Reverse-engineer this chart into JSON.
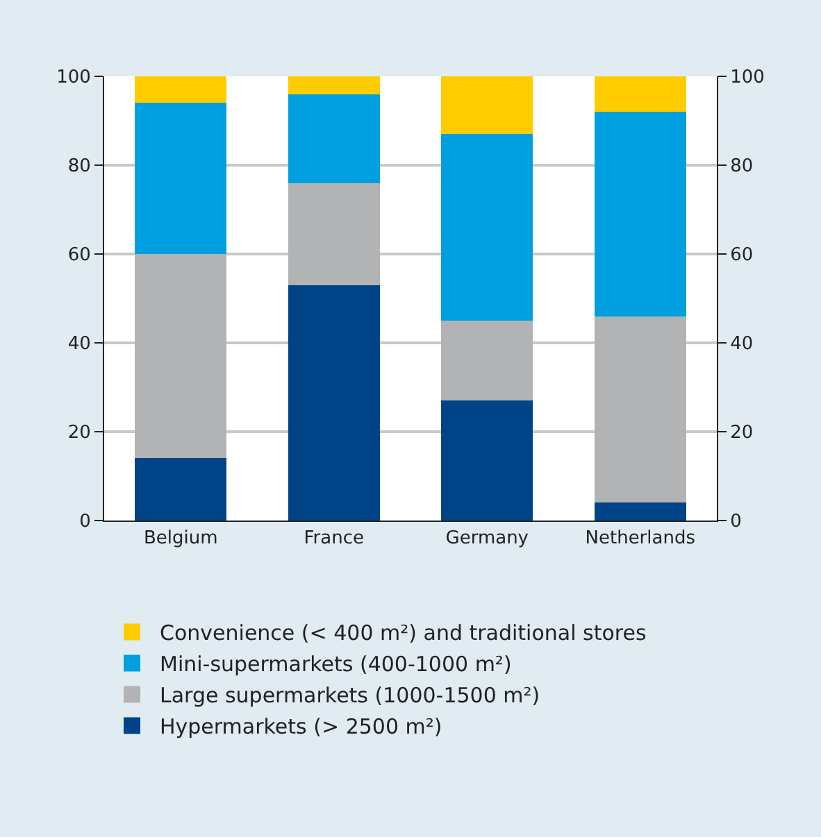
{
  "chart_data": {
    "type": "bar",
    "stacked": true,
    "categories": [
      "Belgium",
      "France",
      "Germany",
      "Netherlands"
    ],
    "series": [
      {
        "name": "Hypermarkets (> 2500 m²)",
        "color": "#004487",
        "values": [
          14,
          53,
          27,
          4
        ]
      },
      {
        "name": "Large supermarkets (1000-1500 m²)",
        "color": "#b2b3b5",
        "values": [
          46,
          23,
          18,
          42
        ]
      },
      {
        "name": "Mini-supermarkets (400-1000 m²)",
        "color": "#009fdf",
        "values": [
          34,
          20,
          42,
          46
        ]
      },
      {
        "name": "Convenience (< 400 m²) and traditional stores",
        "color": "#ffcc00",
        "values": [
          6,
          4,
          13,
          8
        ]
      }
    ],
    "ylim": [
      0,
      100
    ],
    "yticks": [
      0,
      20,
      40,
      60,
      80,
      100
    ],
    "y2lim": [
      0,
      100
    ],
    "y2ticks": [
      0,
      20,
      40,
      60,
      80,
      100
    ],
    "grid": "y",
    "legend": "bottom"
  }
}
